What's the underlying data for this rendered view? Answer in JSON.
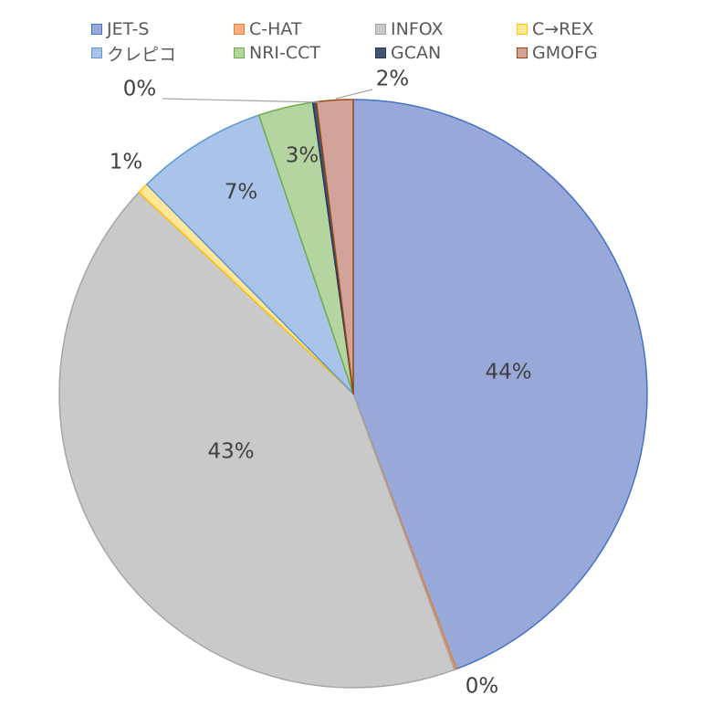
{
  "chart_data": {
    "type": "pie",
    "legend_position": "top",
    "start_angle_deg": 0,
    "direction": "clockwise",
    "slices": [
      {
        "name": "JET-S",
        "value": 44.3,
        "label": "44%",
        "fill": "#98A9D9",
        "stroke": "#4472C4"
      },
      {
        "name": "C-HAT",
        "value": 0.1,
        "label": "0%",
        "fill": "#F4B183",
        "stroke": "#ED7D31"
      },
      {
        "name": "INFOX",
        "value": 42.6,
        "label": "43%",
        "fill": "#C9C9C9",
        "stroke": "#A5A5A5"
      },
      {
        "name": "C→REX",
        "value": 0.6,
        "label": "1%",
        "fill": "#FFE699",
        "stroke": "#FFC000"
      },
      {
        "name": "クレピコ",
        "value": 7.2,
        "label": "7%",
        "fill": "#A9C4E8",
        "stroke": "#5B9BD5"
      },
      {
        "name": "NRI-CCT",
        "value": 3.0,
        "label": "3%",
        "fill": "#B5D5A0",
        "stroke": "#70AD47"
      },
      {
        "name": "GCAN",
        "value": 0.2,
        "label": "0%",
        "fill": "#44546A",
        "stroke": "#203864"
      },
      {
        "name": "GMOFG",
        "value": 2.0,
        "label": "2%",
        "fill": "#D1A39B",
        "stroke": "#9E480E"
      }
    ]
  }
}
